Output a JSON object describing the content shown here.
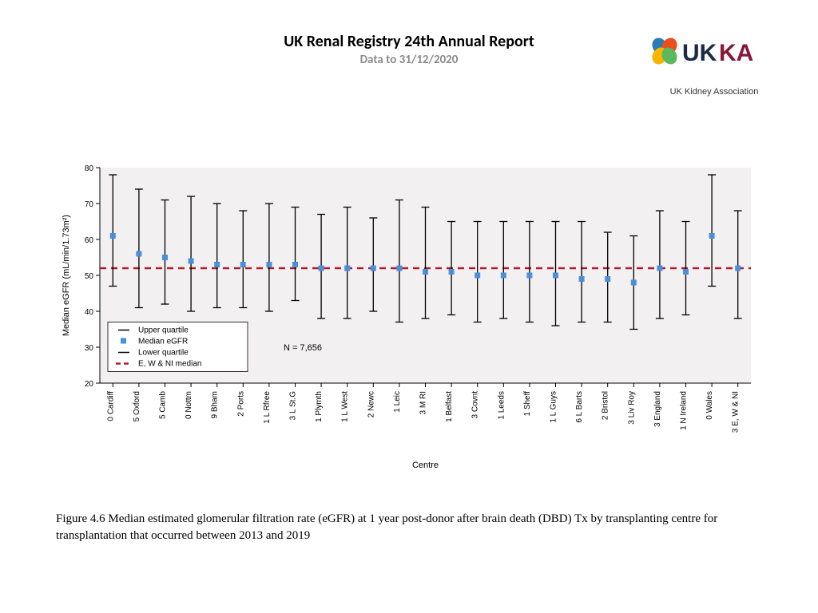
{
  "header": {
    "title": "UK Renal Registry 24th Annual Report",
    "subtitle": "Data to 31/12/2020"
  },
  "logo": {
    "name": "UK Kidney Association",
    "tagline": "UK Kidney Association",
    "petal_colors": [
      "#2b7bb9",
      "#e94e1b",
      "#f7b500",
      "#5cb85c"
    ],
    "text_color_uk": "#1b2a49",
    "text_color_ka": "#8a1538"
  },
  "chart": {
    "type": "error-bar / quartile plot",
    "ylabel": "Median eGFR (mL/min/1.73m²)",
    "xlabel": "Centre",
    "n_label": "N = 7,656",
    "ylim": [
      20,
      80
    ],
    "ytick_step": 10,
    "reference_line": 52,
    "reference_color": "#b01c2e",
    "reference_dash": "8 6",
    "plot_bg": "#f2f0f0",
    "axis_color": "#000000",
    "tick_color": "#000000",
    "bar_color": "#000000",
    "marker_color": "#4a90d9",
    "marker_size": 7,
    "font_size_axis": 11,
    "font_size_ticks": 10,
    "legend": {
      "items": [
        {
          "label": "Upper quartile",
          "kind": "cap"
        },
        {
          "label": "Median eGFR",
          "kind": "marker"
        },
        {
          "label": "Lower quartile",
          "kind": "cap"
        },
        {
          "label": "E, W & NI median",
          "kind": "dash"
        }
      ],
      "bg": "#ffffff",
      "border": "#000000"
    },
    "centres": [
      {
        "name": "0 Cardiff",
        "lower": 47,
        "median": 61,
        "upper": 78
      },
      {
        "name": "5 Oxford",
        "lower": 41,
        "median": 56,
        "upper": 74
      },
      {
        "name": "5 Camb",
        "lower": 42,
        "median": 55,
        "upper": 71
      },
      {
        "name": "0 Nottm",
        "lower": 40,
        "median": 54,
        "upper": 72
      },
      {
        "name": "9 Bham",
        "lower": 41,
        "median": 53,
        "upper": 70
      },
      {
        "name": "2 Ports",
        "lower": 41,
        "median": 53,
        "upper": 68
      },
      {
        "name": "1 L Rfree",
        "lower": 40,
        "median": 53,
        "upper": 70
      },
      {
        "name": "3 L St.G",
        "lower": 43,
        "median": 53,
        "upper": 69
      },
      {
        "name": "1 Plymth",
        "lower": 38,
        "median": 52,
        "upper": 67
      },
      {
        "name": "1 L West",
        "lower": 38,
        "median": 52,
        "upper": 69
      },
      {
        "name": "2 Newc",
        "lower": 40,
        "median": 52,
        "upper": 66
      },
      {
        "name": "1 Leic",
        "lower": 37,
        "median": 52,
        "upper": 71
      },
      {
        "name": "3 M RI",
        "lower": 38,
        "median": 51,
        "upper": 69
      },
      {
        "name": "1 Belfast",
        "lower": 39,
        "median": 51,
        "upper": 65
      },
      {
        "name": "3 Covnt",
        "lower": 37,
        "median": 50,
        "upper": 65
      },
      {
        "name": "1 Leeds",
        "lower": 38,
        "median": 50,
        "upper": 65
      },
      {
        "name": "1 Sheff",
        "lower": 37,
        "median": 50,
        "upper": 65
      },
      {
        "name": "1 L Guys",
        "lower": 36,
        "median": 50,
        "upper": 65
      },
      {
        "name": "6 L Barts",
        "lower": 37,
        "median": 49,
        "upper": 65
      },
      {
        "name": "2 Bristol",
        "lower": 37,
        "median": 49,
        "upper": 62
      },
      {
        "name": "3 Liv Roy",
        "lower": 35,
        "median": 48,
        "upper": 61
      },
      {
        "name": "3 England",
        "lower": 38,
        "median": 52,
        "upper": 68
      },
      {
        "name": "1 N Ireland",
        "lower": 39,
        "median": 51,
        "upper": 65
      },
      {
        "name": "0 Wales",
        "lower": 47,
        "median": 61,
        "upper": 78
      },
      {
        "name": "3 E, W & NI",
        "lower": 38,
        "median": 52,
        "upper": 68
      }
    ]
  },
  "caption": "Figure 4.6 Median estimated glomerular filtration rate (eGFR) at 1 year post-donor after brain death (DBD) Tx by transplanting centre for transplantation that occurred between 2013 and 2019"
}
